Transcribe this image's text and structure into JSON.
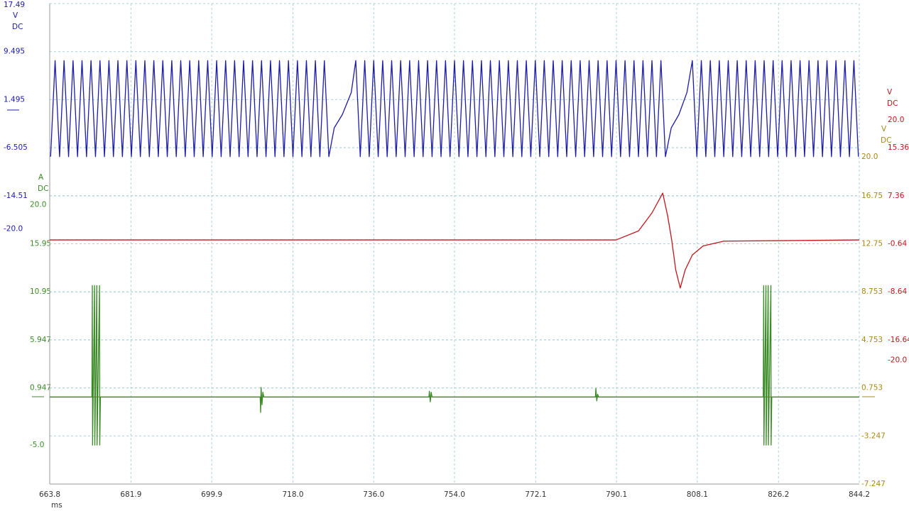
{
  "chart_data": {
    "type": "line",
    "xlim": [
      663.8,
      844.2
    ],
    "xticks": [
      663.8,
      681.9,
      699.9,
      {
        "value": 718,
        "label": "718.0"
      },
      {
        "value": 736,
        "label": "736.0"
      },
      {
        "value": 754,
        "label": "754.0"
      },
      772.1,
      790.1,
      808.1,
      826.2,
      844.2
    ],
    "xlabel": "ms",
    "grid": true,
    "y_axes": [
      {
        "unit": [
          "V",
          "DC"
        ],
        "color": "#1c1ca8",
        "ylim": [
          -62.505,
          17.495
        ],
        "yticks": [
          17.49,
          9.495,
          1.495,
          -6.505,
          -14.51
        ],
        "limit_marks": [
          {
            "value": -20,
            "label": "-20.0"
          }
        ]
      },
      {
        "unit": [
          "A",
          "DC"
        ],
        "color": "#3a8a26",
        "ylim": [
          -9.053,
          40.947
        ],
        "yticks": [
          15.95,
          10.95,
          5.947,
          0.947
        ],
        "limit_marks": [
          {
            "value": 20,
            "label": "20.0"
          },
          {
            "value": -5,
            "label": "-5.0"
          }
        ]
      },
      {
        "unit": [
          "V",
          "DC"
        ],
        "color": "#a88a14",
        "ylim": [
          -7.247,
          32.753
        ],
        "yticks": [
          16.75,
          12.75,
          8.753,
          4.753,
          0.753,
          -3.247,
          -7.247
        ],
        "limit_marks": [
          {
            "value": 20,
            "label": "20.0"
          }
        ]
      },
      {
        "unit": [
          "V",
          "DC"
        ],
        "color": "#c0161b",
        "ylim": [
          -40.64,
          39.36
        ],
        "yticks": [
          15.36,
          7.36,
          -0.64,
          -8.64,
          -16.64
        ],
        "limit_marks": [
          {
            "value": 20,
            "label": "20.0"
          },
          {
            "value": -20,
            "label": "-20.0"
          }
        ]
      }
    ],
    "series": [
      {
        "axis": 0,
        "color": "#1c1ca8",
        "x": [
          664,
          665,
          666,
          667,
          668,
          669,
          670,
          671,
          672,
          673,
          674,
          675,
          676,
          677,
          678,
          679,
          680,
          681,
          682,
          683,
          684,
          685,
          686,
          687,
          688,
          689,
          690,
          691,
          692,
          693,
          694,
          695,
          696,
          697,
          698,
          699,
          700,
          701,
          702,
          703,
          704,
          705,
          706,
          707,
          708,
          709,
          710,
          711,
          712,
          713,
          714,
          715,
          716,
          717,
          718,
          719,
          720,
          721,
          722,
          723,
          724,
          725,
          726,
          727.2,
          729,
          731,
          732,
          733,
          734,
          735,
          736,
          737,
          738,
          739,
          740,
          741,
          742,
          743,
          744,
          745,
          746,
          747,
          748,
          749,
          750,
          751,
          752,
          753,
          754,
          755,
          756,
          757,
          758,
          759,
          760,
          761,
          762,
          763,
          764,
          765,
          766,
          767,
          768,
          769,
          770,
          771,
          772,
          773,
          774,
          775,
          776,
          777,
          778,
          779,
          780,
          781,
          782,
          783,
          784,
          785,
          786,
          787,
          788,
          789,
          790,
          791,
          792,
          793,
          794,
          795,
          796,
          797,
          798,
          799,
          800,
          801,
          802.3,
          804,
          805.8,
          807,
          808,
          809,
          810,
          811,
          812,
          813,
          814,
          815,
          816,
          817,
          818,
          819,
          820,
          821,
          822,
          823,
          824,
          825,
          826,
          827,
          828,
          829,
          830,
          831,
          832,
          833,
          834,
          835,
          836,
          837,
          838,
          839,
          840,
          841,
          842,
          843,
          844
        ],
        "values": [
          -8,
          8,
          -8,
          8,
          -8,
          8,
          -8,
          8,
          -8,
          8,
          -8,
          8,
          -8,
          8,
          -8,
          8,
          -8,
          8,
          -8,
          8,
          -8,
          8,
          -8,
          8,
          -8,
          8,
          -8,
          8,
          -8,
          8,
          -8,
          8,
          -8,
          8,
          -8,
          8,
          -8,
          8,
          -8,
          8,
          -8,
          8,
          -8,
          8,
          -8,
          8,
          -8,
          8,
          -8,
          8,
          -8,
          8,
          -8,
          8,
          -8,
          8,
          -8,
          8,
          -8,
          8,
          -8,
          8,
          -8,
          -3.2,
          -1,
          2.7,
          8,
          -8,
          8,
          -8,
          8,
          -8,
          8,
          -8,
          8,
          -8,
          8,
          -8,
          8,
          -8,
          8,
          -8,
          8,
          -8,
          8,
          -8,
          8,
          -8,
          8,
          -8,
          8,
          -8,
          8,
          -8,
          8,
          -8,
          8,
          -8,
          8,
          -8,
          8,
          -8,
          8,
          -8,
          8,
          -8,
          8,
          -8,
          8,
          -8,
          8,
          -8,
          8,
          -8,
          8,
          -8,
          8,
          -8,
          8,
          -8,
          8,
          -8,
          8,
          -8,
          8,
          -8,
          8,
          -8,
          8,
          -8,
          8,
          -8,
          8,
          -8,
          8,
          -8,
          -3.2,
          -1,
          2.7,
          8,
          -8,
          8,
          -8,
          8,
          -8,
          8,
          -8,
          8,
          -8,
          8,
          -8,
          8,
          -8,
          8,
          -8,
          8,
          -8,
          8,
          -8,
          8,
          -8,
          8,
          -8,
          8,
          -8,
          8,
          -8,
          8,
          -8,
          8,
          -8,
          8,
          -8,
          8,
          -8,
          8,
          -8
        ]
      },
      {
        "axis": 3,
        "color": "#c0161b",
        "x": [
          663.8,
          790,
          795,
          798,
          800.4,
          801.5,
          802.4,
          803.3,
          804.3,
          805.4,
          807,
          809.4,
          814,
          844.2
        ],
        "values": [
          0,
          0,
          1.5,
          4.5,
          7.8,
          4,
          0,
          -5,
          -8,
          -5,
          -2.5,
          -1,
          -0.2,
          0
        ]
      },
      {
        "axis": 2,
        "color": "#a88a14",
        "x": [
          663.8,
          844.2
        ],
        "values": [
          0,
          0
        ]
      },
      {
        "axis": 1,
        "color": "#3a8a26",
        "x": [
          663.8,
          673.2,
          673.3,
          673.35,
          673.8,
          673.85,
          674.3,
          674.35,
          674.9,
          674.95,
          675.1,
          710.7,
          710.8,
          710.9,
          711.1,
          711.3,
          711.5,
          748.3,
          748.4,
          748.6,
          748.8,
          749,
          785.4,
          785.5,
          785.7,
          785.9,
          786.1,
          822.8,
          822.9,
          822.95,
          823.4,
          823.45,
          823.9,
          823.95,
          824.5,
          824.55,
          824.7,
          844.2
        ],
        "values": [
          0,
          0,
          11.6,
          -5,
          11.6,
          -5,
          11.6,
          -5,
          11.6,
          -5,
          0,
          0,
          -1.6,
          1,
          -0.8,
          0.5,
          0,
          0,
          0.6,
          -0.5,
          0.5,
          0,
          0,
          0.9,
          -0.4,
          0.3,
          0,
          0,
          11.6,
          -5,
          11.6,
          -5,
          11.6,
          -5,
          11.6,
          -5,
          0,
          0
        ]
      }
    ]
  }
}
